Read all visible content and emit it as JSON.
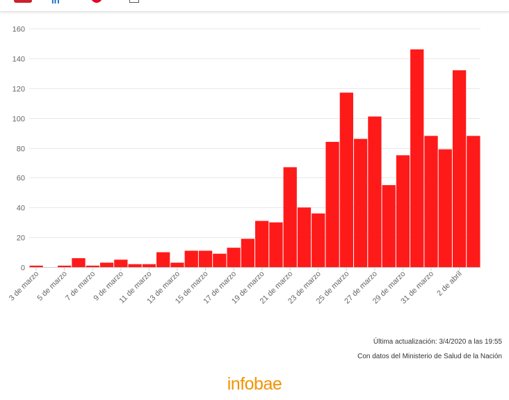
{
  "share": {
    "icons": [
      "mail-icon",
      "linkedin-icon",
      "pinterest-icon",
      "copy-icon"
    ],
    "linkedin_text": "in"
  },
  "chart_data": {
    "type": "bar",
    "title": "",
    "xlabel": "",
    "ylabel": "",
    "ylim": [
      0,
      160
    ],
    "yticks": [
      0,
      20,
      40,
      60,
      80,
      100,
      120,
      140,
      160
    ],
    "bar_color": "#ff1a1a",
    "grid": true,
    "categories": [
      "3 de marzo",
      "4 de marzo",
      "5 de marzo",
      "6 de marzo",
      "7 de marzo",
      "8 de marzo",
      "9 de marzo",
      "10 de marzo",
      "11 de marzo",
      "12 de marzo",
      "13 de marzo",
      "14 de marzo",
      "15 de marzo",
      "16 de marzo",
      "17 de marzo",
      "18 de marzo",
      "19 de marzo",
      "20 de marzo",
      "21 de marzo",
      "22 de marzo",
      "23 de marzo",
      "24 de marzo",
      "25 de marzo",
      "26 de marzo",
      "27 de marzo",
      "28 de marzo",
      "29 de marzo",
      "30 de marzo",
      "31 de marzo",
      "1 de abril",
      "2 de abril",
      "3 de abril"
    ],
    "values": [
      1,
      0,
      1,
      6,
      1,
      3,
      5,
      2,
      2,
      10,
      3,
      11,
      11,
      9,
      13,
      19,
      31,
      30,
      67,
      40,
      36,
      84,
      117,
      86,
      101,
      55,
      75,
      146,
      88,
      79,
      132,
      88
    ],
    "tick_labels": [
      "3 de marzo",
      "5 de marzo",
      "7 de marzo",
      "9 de marzo",
      "11 de marzo",
      "13 de marzo",
      "15 de marzo",
      "17 de marzo",
      "19 de marzo",
      "21 de marzo",
      "23 de marzo",
      "25 de marzo",
      "27 de marzo",
      "29 de marzo",
      "31 de marzo",
      "2 de abril"
    ]
  },
  "footer": {
    "updated": "Última actualización: 3/4/2020 a las 19:55",
    "source": "Con datos del Ministerio de Salud de la Nación",
    "logo": "infobae"
  }
}
